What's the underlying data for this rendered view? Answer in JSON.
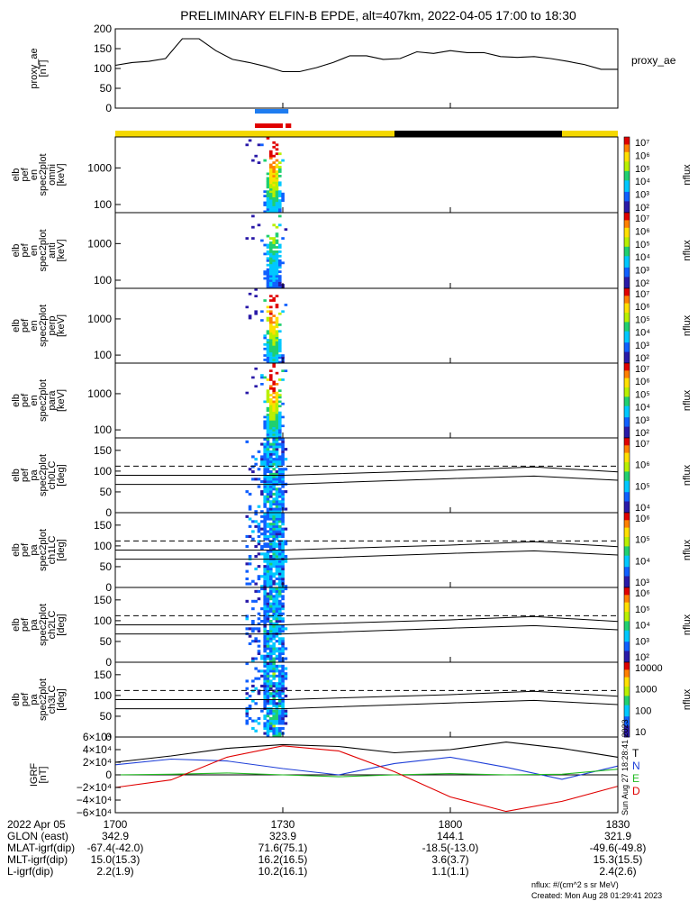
{
  "title": "PRELIMINARY ELFIN-B EPDE, alt=407km, 2022-04-05 17:00 to 18:30",
  "time_axis": {
    "start": "1700",
    "end": "1830",
    "ticks": [
      "1700",
      "1730",
      "1800",
      "1830"
    ],
    "date": "2022 Apr 05"
  },
  "bars": {
    "day_night": [
      {
        "from": 0,
        "to": 50,
        "color": "#f4d800"
      },
      {
        "from": 50,
        "to": 80,
        "color": "#000000"
      },
      {
        "from": 80,
        "to": 90,
        "color": "#f4d800"
      }
    ],
    "blue_bar": [
      {
        "from": 25,
        "to": 31,
        "color": "#1e7cf0"
      }
    ],
    "red_bar": [
      {
        "from": 25,
        "to": 30,
        "color": "#e00000"
      },
      {
        "from": 30.5,
        "to": 31.5,
        "color": "#e00000"
      }
    ]
  },
  "chart_data": [
    {
      "type": "line",
      "panel": "proxy_ae",
      "ylabel_lines": [
        "proxy_ae",
        "[nT]"
      ],
      "legend": "proxy_ae",
      "ylim": [
        0,
        200
      ],
      "yticks": [
        "0",
        "50",
        "100",
        "150",
        "200"
      ],
      "x_minutes": [
        0,
        3,
        6,
        9,
        12,
        15,
        18,
        21,
        24,
        27,
        30,
        33,
        36,
        39,
        42,
        45,
        48,
        51,
        54,
        57,
        60,
        63,
        66,
        69,
        72,
        75,
        78,
        81,
        84,
        87,
        90
      ],
      "values": [
        108,
        115,
        118,
        125,
        175,
        175,
        145,
        123,
        115,
        105,
        92,
        92,
        102,
        115,
        132,
        132,
        123,
        125,
        142,
        138,
        145,
        140,
        140,
        130,
        128,
        130,
        125,
        118,
        110,
        98,
        98
      ]
    },
    {
      "type": "heatmap",
      "panel": "energy_omni",
      "ylabel_lines": [
        "elb",
        "pef",
        "en",
        "spec2plot",
        "omni",
        "[keV]"
      ],
      "ylim": [
        60,
        7000
      ],
      "yscale": "log",
      "yticks": [
        "100",
        "1000"
      ],
      "colorbar_label": "nflux",
      "colorbar_ticks": [
        "10²",
        "10³",
        "10⁴",
        "10⁵",
        "10⁶",
        "10⁷"
      ]
    },
    {
      "type": "heatmap",
      "panel": "energy_anti",
      "ylabel_lines": [
        "elb",
        "pef",
        "en",
        "spec2plot",
        "anti",
        "[keV]"
      ],
      "ylim": [
        60,
        7000
      ],
      "yscale": "log",
      "yticks": [
        "100",
        "1000"
      ],
      "colorbar_label": "nflux",
      "colorbar_ticks": [
        "10²",
        "10³",
        "10⁴",
        "10⁵",
        "10⁶",
        "10⁷"
      ]
    },
    {
      "type": "heatmap",
      "panel": "energy_perp",
      "ylabel_lines": [
        "elb",
        "pef",
        "en",
        "spec2plot",
        "perp",
        "[keV]"
      ],
      "ylim": [
        60,
        7000
      ],
      "yscale": "log",
      "yticks": [
        "100",
        "1000"
      ],
      "colorbar_label": "nflux",
      "colorbar_ticks": [
        "10²",
        "10³",
        "10⁴",
        "10⁵",
        "10⁶",
        "10⁷"
      ]
    },
    {
      "type": "heatmap",
      "panel": "energy_para",
      "ylabel_lines": [
        "elb",
        "pef",
        "en",
        "spec2plot",
        "para",
        "[keV]"
      ],
      "ylim": [
        60,
        7000
      ],
      "yscale": "log",
      "yticks": [
        "100",
        "1000"
      ],
      "colorbar_label": "nflux",
      "colorbar_ticks": [
        "10²",
        "10³",
        "10⁴",
        "10⁵",
        "10⁶",
        "10⁷"
      ]
    },
    {
      "type": "heatmap",
      "panel": "pa_ch0LC",
      "ylabel_lines": [
        "elb",
        "pef",
        "pa",
        "spec2plot",
        "ch0LC",
        "[deg]"
      ],
      "ylim": [
        0,
        180
      ],
      "yticks": [
        "0",
        "50",
        "100",
        "150"
      ],
      "colorbar_label": "nflux",
      "colorbar_ticks": [
        "10⁴",
        "10⁵",
        "10⁶",
        "10⁷"
      ]
    },
    {
      "type": "heatmap",
      "panel": "pa_ch1LC",
      "ylabel_lines": [
        "elb",
        "pef",
        "pa",
        "spec2plot",
        "ch1LC",
        "[deg]"
      ],
      "ylim": [
        0,
        180
      ],
      "yticks": [
        "0",
        "50",
        "100",
        "150"
      ],
      "colorbar_label": "nflux",
      "colorbar_ticks": [
        "10³",
        "10⁴",
        "10⁵",
        "10⁶"
      ]
    },
    {
      "type": "heatmap",
      "panel": "pa_ch2LC",
      "ylabel_lines": [
        "elb",
        "pef",
        "pa",
        "spec2plot",
        "ch2LC",
        "[deg]"
      ],
      "ylim": [
        0,
        180
      ],
      "yticks": [
        "0",
        "50",
        "100",
        "150"
      ],
      "colorbar_label": "nflux",
      "colorbar_ticks": [
        "10²",
        "10³",
        "10⁴",
        "10⁵",
        "10⁶"
      ]
    },
    {
      "type": "heatmap",
      "panel": "pa_ch3LC",
      "ylabel_lines": [
        "elb",
        "pef",
        "pa",
        "spec2plot",
        "ch3LC",
        "[deg]"
      ],
      "ylim": [
        0,
        180
      ],
      "yticks": [
        "0",
        "50",
        "100",
        "150"
      ],
      "colorbar_label": "nflux",
      "colorbar_ticks": [
        "10",
        "100",
        "1000",
        "10000"
      ]
    },
    {
      "type": "line",
      "panel": "igrf",
      "ylabel_lines": [
        "IGRF",
        "[nT]"
      ],
      "ylim": [
        -60000,
        60000
      ],
      "yticks": [
        "−6×10⁴",
        "−4×10⁴",
        "−2×10⁴",
        "0",
        "2×10⁴",
        "4×10⁴",
        "6×10⁴"
      ],
      "series": [
        {
          "name": "T",
          "color": "#000000",
          "x_minutes": [
            0,
            10,
            20,
            30,
            40,
            50,
            60,
            70,
            80,
            90
          ],
          "values": [
            20000,
            30000,
            42000,
            48000,
            45000,
            35000,
            40000,
            52000,
            42000,
            28000
          ]
        },
        {
          "name": "N",
          "color": "#1f3fd8",
          "x_minutes": [
            0,
            10,
            20,
            30,
            40,
            50,
            60,
            70,
            80,
            90
          ],
          "values": [
            16000,
            25000,
            22000,
            10000,
            0,
            18000,
            28000,
            12000,
            -7000,
            14000
          ]
        },
        {
          "name": "E",
          "color": "#22bb22",
          "x_minutes": [
            0,
            10,
            20,
            30,
            40,
            50,
            60,
            70,
            80,
            90
          ],
          "values": [
            0,
            1000,
            3000,
            0,
            -3000,
            0,
            2000,
            0,
            1000,
            9000
          ]
        },
        {
          "name": "D",
          "color": "#e00000",
          "x_minutes": [
            0,
            10,
            20,
            30,
            40,
            50,
            60,
            70,
            80,
            90
          ],
          "values": [
            -20000,
            -8000,
            28000,
            46000,
            38000,
            5000,
            -35000,
            -58000,
            -42000,
            -18000
          ]
        }
      ]
    }
  ],
  "ephemeris": [
    {
      "label": "GLON (east)",
      "values": [
        "342.9",
        "323.9",
        "144.1",
        "321.9"
      ]
    },
    {
      "label": "MLAT-igrf(dip)",
      "values": [
        "-67.4(-42.0)",
        "71.6(75.1)",
        "-18.5(-13.0)",
        "-49.6(-49.8)"
      ]
    },
    {
      "label": "MLT-igrf(dip)",
      "values": [
        "15.0(15.3)",
        "16.2(16.5)",
        "3.6(3.7)",
        "15.3(15.5)"
      ]
    },
    {
      "label": "L-igrf(dip)",
      "values": [
        "2.2(1.9)",
        "10.2(16.1)",
        "1.1(1.1)",
        "2.4(2.6)"
      ]
    }
  ],
  "footer": {
    "units": "nflux: #/(cm^2 s sr MeV)",
    "created": "Created: Mon Aug 28 01:29:41 2023",
    "stamp": "Sun Aug 27 18:28:41 2023"
  }
}
